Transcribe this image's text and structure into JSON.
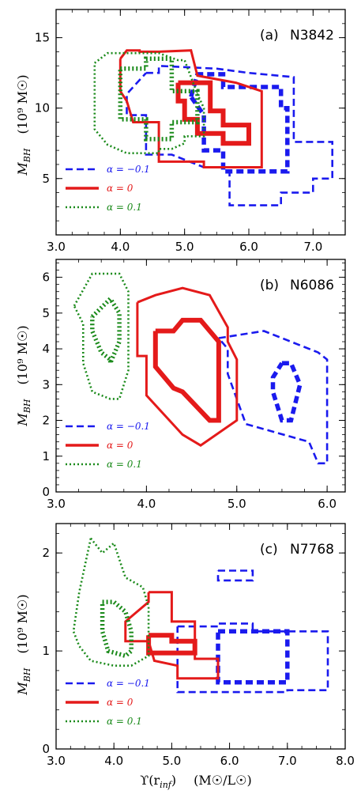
{
  "colors": {
    "alpha_m01": "#1a1aee",
    "alpha_0": "#e41a1a",
    "alpha_p01": "#1a8a1a"
  },
  "ylabel": {
    "main": "M",
    "sub": "BH",
    "unit": "(10⁹ M☉)"
  },
  "xlabel": {
    "main": "ϒ(r",
    "sub": "inf",
    "close": ")",
    "unit": "(M☉/L☉)"
  },
  "legend": {
    "m01": "α = −0.1",
    "zero": "α = 0",
    "p01": "α = 0.1"
  },
  "chart_data": [
    {
      "type": "contour",
      "panel": "(a)",
      "galaxy": "N3842",
      "xlim": [
        3.0,
        7.5
      ],
      "ylim": [
        1.0,
        17.0
      ],
      "xticks": [
        "3.0",
        "4.0",
        "5.0",
        "6.0",
        "7.0"
      ],
      "xtick_values": [
        3.0,
        4.0,
        5.0,
        6.0,
        7.0
      ],
      "yticks": [
        "5",
        "10",
        "15"
      ],
      "ytick_values": [
        5,
        10,
        15
      ],
      "legend_position": "bottom-left",
      "series": [
        {
          "alpha": -0.1,
          "level": "inner",
          "x": [
            5.1,
            5.2,
            5.6,
            5.6,
            6.5,
            6.5,
            6.6,
            6.6,
            5.6,
            5.6,
            5.3,
            5.3,
            5.1
          ],
          "y": [
            10.8,
            12.4,
            12.4,
            11.5,
            11.5,
            10.0,
            10.0,
            5.5,
            5.5,
            7.0,
            7.0,
            9.5,
            10.8
          ]
        },
        {
          "alpha": -0.1,
          "level": "outer",
          "x": [
            4.4,
            4.6,
            4.6,
            5.5,
            6.0,
            6.7,
            6.7,
            7.3,
            7.3,
            7.0,
            7.0,
            6.5,
            6.5,
            5.7,
            5.7,
            5.3,
            4.8,
            4.4,
            4.4,
            4.1,
            4.1,
            4.4
          ],
          "y": [
            12.5,
            12.5,
            13.0,
            12.8,
            12.5,
            12.2,
            7.6,
            7.6,
            5.0,
            5.0,
            4.0,
            4.0,
            3.1,
            3.1,
            5.8,
            5.8,
            6.7,
            6.7,
            9.5,
            9.5,
            11.0,
            12.5
          ]
        },
        {
          "alpha": 0,
          "level": "inner",
          "x": [
            4.9,
            5.4,
            5.4,
            5.6,
            5.6,
            6.0,
            6.0,
            5.6,
            5.6,
            5.2,
            5.2,
            5.0,
            5.0,
            4.9,
            4.9
          ],
          "y": [
            11.8,
            11.8,
            9.8,
            9.8,
            8.8,
            8.8,
            7.5,
            7.5,
            8.2,
            8.2,
            9.2,
            9.2,
            10.5,
            10.5,
            11.8
          ]
        },
        {
          "alpha": 0,
          "level": "outer",
          "x": [
            4.0,
            4.1,
            4.3,
            4.3,
            4.6,
            5.1,
            5.2,
            5.8,
            6.2,
            6.2,
            5.3,
            5.3,
            4.6,
            4.6,
            4.2,
            4.1,
            4.0,
            4.0
          ],
          "y": [
            13.5,
            14.1,
            14.1,
            14.0,
            14.0,
            14.1,
            12.3,
            11.8,
            11.2,
            5.8,
            5.8,
            6.2,
            6.2,
            9.0,
            9.0,
            10.5,
            11.2,
            13.5
          ]
        },
        {
          "alpha": 0.1,
          "level": "inner",
          "x": [
            4.0,
            4.4,
            4.4,
            4.8,
            4.8,
            5.2,
            5.2,
            4.8,
            4.8,
            4.4,
            4.4,
            4.0,
            4.0
          ],
          "y": [
            12.8,
            12.8,
            13.5,
            13.5,
            11.2,
            11.2,
            9.0,
            9.0,
            7.8,
            7.8,
            9.2,
            9.2,
            12.8
          ]
        },
        {
          "alpha": 0.1,
          "level": "outer",
          "x": [
            3.6,
            3.8,
            4.2,
            4.6,
            4.9,
            5.0,
            5.2,
            5.3,
            5.3,
            5.0,
            5.0,
            4.8,
            4.6,
            4.6,
            4.1,
            3.8,
            3.6,
            3.6,
            3.6
          ],
          "y": [
            13.2,
            13.9,
            13.9,
            13.9,
            13.4,
            13.4,
            11.0,
            10.0,
            8.0,
            8.0,
            7.5,
            7.1,
            7.1,
            6.8,
            6.8,
            7.4,
            8.5,
            11.0,
            13.2
          ]
        }
      ]
    },
    {
      "type": "contour",
      "panel": "(b)",
      "galaxy": "N6086",
      "xlim": [
        3.0,
        6.2
      ],
      "ylim": [
        0.0,
        6.5
      ],
      "xticks": [
        "3.0",
        "4.0",
        "5.0",
        "6.0"
      ],
      "xtick_values": [
        3.0,
        4.0,
        5.0,
        6.0
      ],
      "yticks": [
        "0",
        "1",
        "2",
        "3",
        "4",
        "5",
        "6"
      ],
      "ytick_values": [
        0,
        1,
        2,
        3,
        4,
        5,
        6
      ],
      "legend_position": "bottom-left",
      "series": [
        {
          "alpha": -0.1,
          "level": "inner",
          "x": [
            5.5,
            5.6,
            5.7,
            5.6,
            5.5,
            5.4,
            5.4,
            5.5
          ],
          "y": [
            3.6,
            3.6,
            3.0,
            2.0,
            2.0,
            2.8,
            3.2,
            3.6
          ]
        },
        {
          "alpha": -0.1,
          "level": "outer",
          "x": [
            4.8,
            5.3,
            5.9,
            6.0,
            6.0,
            5.9,
            5.8,
            5.1,
            4.9,
            4.9,
            4.8
          ],
          "y": [
            4.3,
            4.5,
            3.9,
            3.7,
            0.8,
            0.8,
            1.4,
            1.9,
            3.3,
            4.0,
            4.3
          ]
        },
        {
          "alpha": 0,
          "level": "inner",
          "x": [
            4.1,
            4.3,
            4.4,
            4.6,
            4.8,
            4.8,
            4.7,
            4.4,
            4.3,
            4.1,
            4.1
          ],
          "y": [
            4.5,
            4.5,
            4.8,
            4.8,
            4.2,
            2.0,
            2.0,
            2.8,
            2.9,
            3.5,
            4.5
          ]
        },
        {
          "alpha": 0,
          "level": "outer",
          "x": [
            3.9,
            4.1,
            4.4,
            4.7,
            4.9,
            4.9,
            5.0,
            5.0,
            4.6,
            4.4,
            4.0,
            4.0,
            3.9,
            3.9
          ],
          "y": [
            5.3,
            5.5,
            5.7,
            5.5,
            4.6,
            4.2,
            3.7,
            2.0,
            1.3,
            1.6,
            2.7,
            3.8,
            3.8,
            5.3
          ]
        },
        {
          "alpha": 0.1,
          "level": "inner",
          "x": [
            3.4,
            3.6,
            3.7,
            3.7,
            3.6,
            3.6,
            3.5,
            3.4,
            3.4
          ],
          "y": [
            4.9,
            5.4,
            5.0,
            4.2,
            3.6,
            3.7,
            3.9,
            4.5,
            4.9
          ]
        },
        {
          "alpha": 0.1,
          "level": "outer",
          "x": [
            3.2,
            3.4,
            3.7,
            3.8,
            3.8,
            3.7,
            3.6,
            3.4,
            3.3,
            3.3,
            3.2
          ],
          "y": [
            5.2,
            6.1,
            6.1,
            5.6,
            3.4,
            2.6,
            2.6,
            2.8,
            3.6,
            4.7,
            5.2
          ]
        }
      ]
    },
    {
      "type": "contour",
      "panel": "(c)",
      "galaxy": "N7768",
      "xlim": [
        3.0,
        8.0
      ],
      "ylim": [
        0.0,
        2.3
      ],
      "xticks": [
        "3.0",
        "4.0",
        "5.0",
        "6.0",
        "7.0",
        "8.0"
      ],
      "xtick_values": [
        3.0,
        4.0,
        5.0,
        6.0,
        7.0,
        8.0
      ],
      "yticks": [
        "0",
        "1",
        "2"
      ],
      "ytick_values": [
        0,
        1,
        2
      ],
      "legend_position": "bottom-left",
      "series": [
        {
          "alpha": -0.1,
          "level": "inner",
          "x": [
            5.8,
            7.0,
            7.0,
            5.8,
            5.8
          ],
          "y": [
            1.2,
            1.2,
            0.68,
            0.68,
            1.2
          ]
        },
        {
          "alpha": -0.1,
          "level": "outer",
          "x": [
            5.1,
            5.8,
            5.8,
            6.4,
            6.4,
            7.7,
            7.7,
            7.0,
            7.0,
            5.1,
            5.1
          ],
          "y": [
            1.25,
            1.25,
            1.28,
            1.28,
            1.2,
            1.2,
            0.6,
            0.6,
            0.58,
            0.58,
            1.25
          ]
        },
        {
          "alpha": -0.1,
          "level": "island",
          "x": [
            5.8,
            6.4,
            6.4,
            5.8,
            5.8
          ],
          "y": [
            1.82,
            1.82,
            1.72,
            1.72,
            1.82
          ]
        },
        {
          "alpha": 0,
          "level": "inner",
          "x": [
            4.6,
            5.0,
            5.0,
            5.4,
            5.4,
            4.6,
            4.6
          ],
          "y": [
            1.16,
            1.16,
            1.1,
            1.1,
            0.98,
            0.98,
            1.16
          ]
        },
        {
          "alpha": 0,
          "level": "outer",
          "x": [
            4.6,
            5.0,
            5.0,
            5.4,
            5.4,
            5.8,
            5.8,
            5.1,
            5.1,
            4.7,
            4.6,
            4.2,
            4.2,
            4.6,
            4.6
          ],
          "y": [
            1.6,
            1.6,
            1.3,
            1.3,
            0.92,
            0.92,
            0.72,
            0.72,
            0.85,
            0.9,
            1.1,
            1.1,
            1.3,
            1.5,
            1.6
          ]
        },
        {
          "alpha": 0.1,
          "level": "inner",
          "x": [
            3.8,
            4.0,
            4.2,
            4.3,
            4.3,
            4.2,
            3.9,
            3.8,
            3.8
          ],
          "y": [
            1.5,
            1.5,
            1.4,
            1.2,
            1.0,
            0.95,
            1.0,
            1.2,
            1.5
          ]
        },
        {
          "alpha": 0.1,
          "level": "outer",
          "x": [
            3.6,
            3.8,
            4.0,
            4.2,
            4.5,
            4.6,
            4.6,
            4.3,
            4.0,
            3.6,
            3.4,
            3.3,
            3.4,
            3.6
          ],
          "y": [
            2.15,
            2.0,
            2.1,
            1.75,
            1.65,
            1.45,
            0.95,
            0.85,
            0.85,
            0.9,
            1.05,
            1.2,
            1.6,
            2.15
          ]
        }
      ]
    }
  ]
}
